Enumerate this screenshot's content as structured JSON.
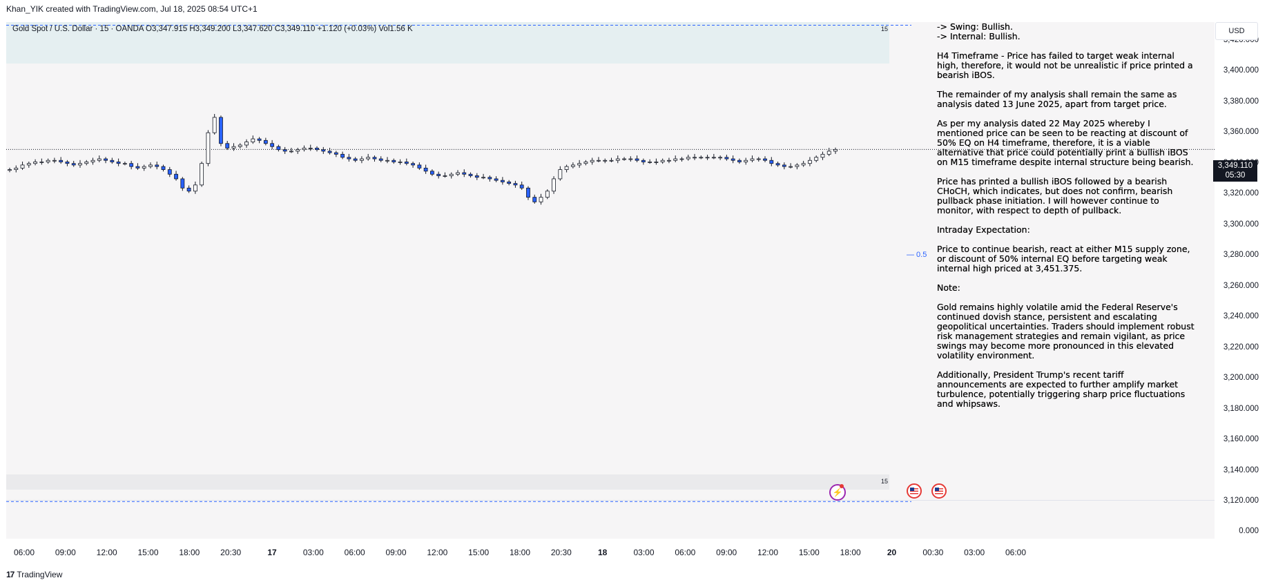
{
  "header": {
    "text": "Khan_YIK created with TradingView.com, Jul 18, 2025 08:54 UTC+1"
  },
  "symbol_info": {
    "text": "Gold Spot / U.S. Dollar · 15 · OANDA  O3,347.915  H3,349.200  L3,347.620  C3,349.110  +1.120 (+0.03%)  Vol1.56 K"
  },
  "interval_marker_top": "15",
  "interval_marker_bottom": "15",
  "currency": "USD",
  "last_price": {
    "price": "3,349.110",
    "countdown": "05:30"
  },
  "fib_marker": "— 0.5",
  "oscillator_value": "0.000",
  "footer": {
    "brand": "TradingView",
    "logo": "17"
  },
  "analysis": [
    {
      "text": "-> Swing: Bullish.",
      "tight": true
    },
    {
      "text": "-> Internal: Bullish."
    },
    {
      "text": "H4 Timeframe - Price has failed to target weak internal high, therefore, it would not be unrealistic if price printed a bearish iBOS."
    },
    {
      "text": "The remainder of my analysis shall remain the same as analysis dated  13 June 2025, apart from target price."
    },
    {
      "text": "As per my analysis dated 22 May 2025 whereby I mentioned price can be seen to be reacting at discount of 50% EQ on H4 timeframe, therefore, it is a viable alternative that price could potentially print a bullish iBOS on M15 timeframe despite internal structure being bearish."
    },
    {
      "text": "Price has printed a bullish iBOS followed by a bearish CHoCH, which indicates, but does not confirm, bearish pullback phase initiation.  I will however continue to monitor, with respect to depth of pullback."
    },
    {
      "text": "Intraday Expectation:"
    },
    {
      "text": "Price to continue bearish, react at either M15 supply zone, or discount of 50% internal EQ before targeting weak internal high priced at 3,451.375."
    },
    {
      "text": "Note:"
    },
    {
      "text": "Gold remains highly volatile amid the Federal Reserve's continued dovish stance, persistent and escalating geopolitical uncertainties. Traders should implement robust risk management strategies and remain vigilant, as price swings may become more pronounced in this elevated volatility environment."
    },
    {
      "text": "Additionally, President Trump's recent tariff announcements are expected to further amplify market turbulence, potentially triggering sharp price fluctuations and whipsaws."
    }
  ],
  "colors": {
    "bull": "#ffffff",
    "bear": "#2962ff",
    "outline": "#131722",
    "accent": "#2962ff",
    "event_flag": "#e53935",
    "flash": "#9c27b0"
  },
  "icons": [
    "flash-icon",
    "us-flag-icon",
    "us-flag-icon"
  ],
  "chart_data": {
    "type": "candlestick",
    "symbol": "Gold Spot / U.S. Dollar",
    "interval": "15",
    "exchange": "OANDA",
    "ohlc_last": {
      "open": 3347.915,
      "high": 3349.2,
      "low": 3347.62,
      "close": 3349.11,
      "change": 1.12,
      "change_pct": 0.03,
      "volume": "1.56 K"
    },
    "y_ticks": [
      "3,420.000",
      "3,400.000",
      "3,380.000",
      "3,360.000",
      "3,340.000",
      "3,320.000",
      "3,300.000",
      "3,280.000",
      "3,260.000",
      "3,240.000",
      "3,220.000",
      "3,200.000",
      "3,180.000",
      "3,160.000",
      "3,140.000",
      "3,120.000"
    ],
    "y_tick_values": [
      3420,
      3400,
      3380,
      3360,
      3340,
      3320,
      3300,
      3280,
      3260,
      3240,
      3220,
      3200,
      3180,
      3160,
      3140,
      3120
    ],
    "ylim": [
      3112,
      3432
    ],
    "x_ticks": [
      {
        "label": "06:00"
      },
      {
        "label": "09:00"
      },
      {
        "label": "12:00"
      },
      {
        "label": "15:00"
      },
      {
        "label": "18:00"
      },
      {
        "label": "20:30"
      },
      {
        "label": "17",
        "bold": true
      },
      {
        "label": "03:00"
      },
      {
        "label": "06:00"
      },
      {
        "label": "09:00"
      },
      {
        "label": "12:00"
      },
      {
        "label": "15:00"
      },
      {
        "label": "18:00"
      },
      {
        "label": "20:30"
      },
      {
        "label": "18",
        "bold": true
      },
      {
        "label": "03:00"
      },
      {
        "label": "06:00"
      },
      {
        "label": "09:00"
      },
      {
        "label": "12:00"
      },
      {
        "label": "15:00"
      },
      {
        "label": "18:00"
      },
      {
        "label": "20",
        "bold": true
      },
      {
        "label": "00:30"
      },
      {
        "label": "03:00"
      },
      {
        "label": "06:00"
      }
    ],
    "series": [
      {
        "name": "",
        "type": "close_path",
        "values": [
          3336,
          3337,
          3339,
          3340,
          3341,
          3341,
          3342,
          3342,
          3341,
          3340,
          3339,
          3340,
          3341,
          3342,
          3343,
          3342,
          3341,
          3340,
          3340,
          3338,
          3337,
          3338,
          3339,
          3338,
          3336,
          3333,
          3330,
          3324,
          3322,
          3326,
          3340,
          3360,
          3370,
          3353,
          3350,
          3351,
          3352,
          3354,
          3356,
          3355,
          3353,
          3351,
          3349,
          3348,
          3348,
          3349,
          3350,
          3350,
          3349,
          3348,
          3347,
          3346,
          3344,
          3343,
          3342,
          3343,
          3344,
          3343,
          3342,
          3342,
          3341,
          3341,
          3340,
          3339,
          3337,
          3335,
          3333,
          3332,
          3332,
          3333,
          3334,
          3333,
          3332,
          3331,
          3331,
          3330,
          3329,
          3328,
          3327,
          3326,
          3324,
          3318,
          3315,
          3318,
          3322,
          3330,
          3336,
          3338,
          3339,
          3340,
          3341,
          3342,
          3342,
          3342,
          3342,
          3343,
          3343,
          3343,
          3342,
          3341,
          3341,
          3341,
          3342,
          3342,
          3343,
          3343,
          3344,
          3344,
          3344,
          3344,
          3344,
          3344,
          3343,
          3342,
          3341,
          3342,
          3343,
          3343,
          3342,
          3340,
          3339,
          3338,
          3338,
          3339,
          3340,
          3342,
          3344,
          3346,
          3348,
          3349.11
        ]
      }
    ],
    "last_price_line": 3349.11,
    "horizontal_lines": [
      3430,
      3120
    ]
  }
}
